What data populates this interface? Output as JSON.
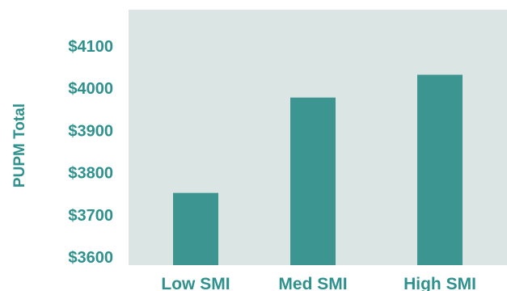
{
  "colors": {
    "plot_background": "#dae5e4",
    "bar": "#3d9592",
    "text": "#2e918d"
  },
  "chart_data": {
    "type": "bar",
    "title": "",
    "xlabel": "",
    "ylabel": "PUPM Total",
    "categories": [
      "Low SMI",
      "Med SMI",
      "High SMI"
    ],
    "values": [
      3752,
      3978,
      4032
    ],
    "yticks": [
      "$3600",
      "$3700",
      "$3800",
      "$3900",
      "$4000",
      "$4100"
    ],
    "ytick_values": [
      3600,
      3700,
      3800,
      3900,
      4000,
      4100
    ],
    "ylim": [
      3580,
      4180
    ],
    "grid": false,
    "legend": "none"
  }
}
